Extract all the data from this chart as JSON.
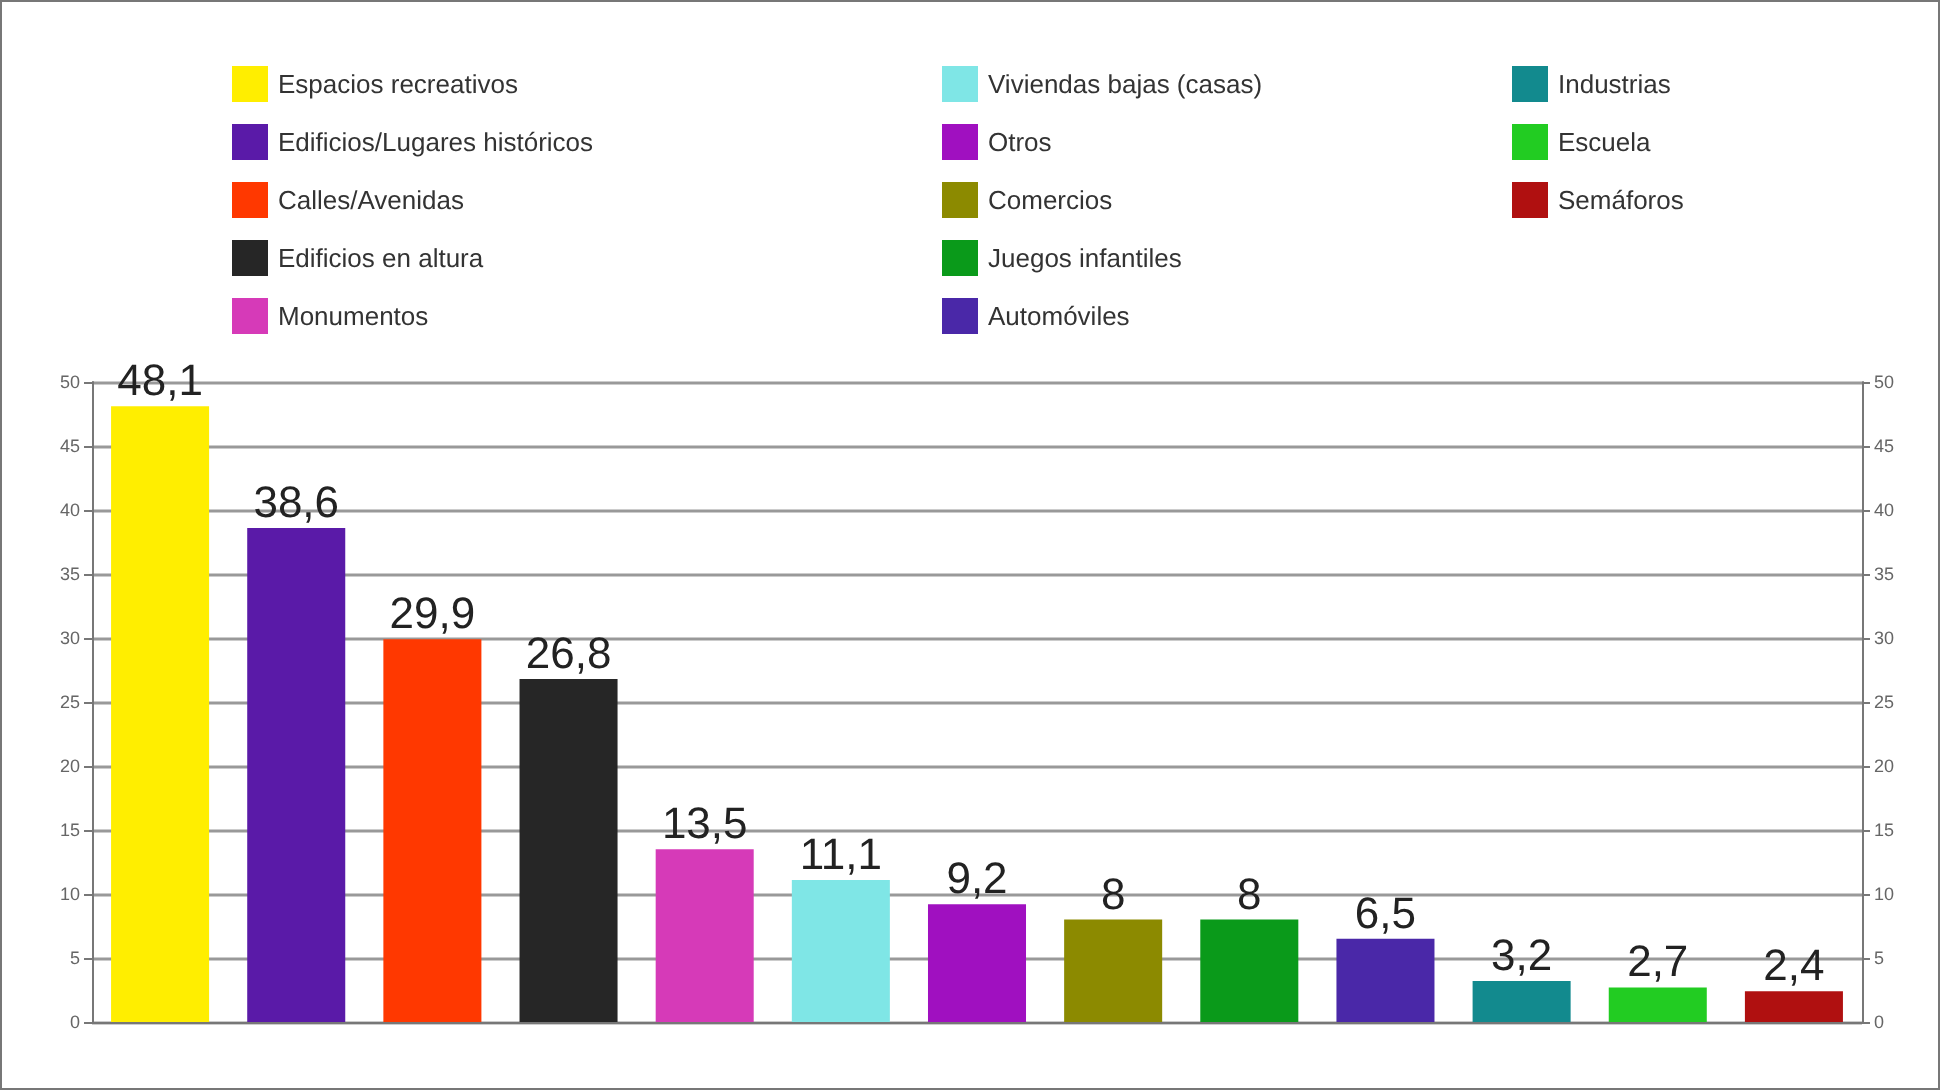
{
  "chart_data": {
    "type": "bar",
    "categories": [
      null,
      null,
      null,
      null,
      null,
      null,
      null,
      null,
      null,
      null,
      null,
      null,
      null
    ],
    "series": [
      {
        "name": "Espacios recreativos",
        "color": "#ffee00",
        "values": [
          48.1,
          null,
          null,
          null,
          null,
          null,
          null,
          null,
          null,
          null,
          null,
          null,
          null
        ],
        "value_labels": [
          "48,1",
          null,
          null,
          null,
          null,
          null,
          null,
          null,
          null,
          null,
          null,
          null,
          null
        ]
      },
      {
        "name": "Edificios/Lugares históricos",
        "color": "#5a1aa8",
        "values": [
          null,
          38.6,
          null,
          null,
          null,
          null,
          null,
          null,
          null,
          null,
          null,
          null,
          null
        ],
        "value_labels": [
          null,
          "38,6",
          null,
          null,
          null,
          null,
          null,
          null,
          null,
          null,
          null,
          null,
          null
        ]
      },
      {
        "name": "Calles/Avenidas",
        "color": "#ff3800",
        "values": [
          null,
          null,
          29.9,
          null,
          null,
          null,
          null,
          null,
          null,
          null,
          null,
          null,
          null
        ],
        "value_labels": [
          null,
          null,
          "29,9",
          null,
          null,
          null,
          null,
          null,
          null,
          null,
          null,
          null,
          null
        ]
      },
      {
        "name": "Edificios en altura",
        "color": "#262626",
        "values": [
          null,
          null,
          null,
          26.8,
          null,
          null,
          null,
          null,
          null,
          null,
          null,
          null,
          null
        ],
        "value_labels": [
          null,
          null,
          null,
          "26,8",
          null,
          null,
          null,
          null,
          null,
          null,
          null,
          null,
          null
        ]
      },
      {
        "name": "Monumentos",
        "color": "#d63ab8",
        "values": [
          null,
          null,
          null,
          null,
          13.5,
          null,
          null,
          null,
          null,
          null,
          null,
          null,
          null
        ],
        "value_labels": [
          null,
          null,
          null,
          null,
          "13,5",
          null,
          null,
          null,
          null,
          null,
          null,
          null,
          null
        ]
      },
      {
        "name": "Viviendas bajas (casas)",
        "color": "#7fe6e6",
        "values": [
          null,
          null,
          null,
          null,
          null,
          11.1,
          null,
          null,
          null,
          null,
          null,
          null,
          null
        ],
        "value_labels": [
          null,
          null,
          null,
          null,
          null,
          "11,1",
          null,
          null,
          null,
          null,
          null,
          null,
          null
        ]
      },
      {
        "name": "Otros",
        "color": "#a010c0",
        "values": [
          null,
          null,
          null,
          null,
          null,
          null,
          9.2,
          null,
          null,
          null,
          null,
          null,
          null
        ],
        "value_labels": [
          null,
          null,
          null,
          null,
          null,
          null,
          "9,2",
          null,
          null,
          null,
          null,
          null,
          null
        ]
      },
      {
        "name": "Comercios",
        "color": "#8c8a00",
        "values": [
          null,
          null,
          null,
          null,
          null,
          null,
          null,
          8,
          null,
          null,
          null,
          null,
          null
        ],
        "value_labels": [
          null,
          null,
          null,
          null,
          null,
          null,
          null,
          "8",
          null,
          null,
          null,
          null,
          null
        ]
      },
      {
        "name": "Juegos infantiles",
        "color": "#0a9a1a",
        "values": [
          null,
          null,
          null,
          null,
          null,
          null,
          null,
          null,
          8,
          null,
          null,
          null,
          null
        ],
        "value_labels": [
          null,
          null,
          null,
          null,
          null,
          null,
          null,
          null,
          "8",
          null,
          null,
          null,
          null
        ]
      },
      {
        "name": "Automóviles",
        "color": "#4a28a8",
        "values": [
          null,
          null,
          null,
          null,
          null,
          null,
          null,
          null,
          null,
          6.5,
          null,
          null,
          null
        ],
        "value_labels": [
          null,
          null,
          null,
          null,
          null,
          null,
          null,
          null,
          null,
          "6,5",
          null,
          null,
          null
        ]
      },
      {
        "name": "Industrias",
        "color": "#128a8e",
        "values": [
          null,
          null,
          null,
          null,
          null,
          null,
          null,
          null,
          null,
          null,
          3.2,
          null,
          null
        ],
        "value_labels": [
          null,
          null,
          null,
          null,
          null,
          null,
          null,
          null,
          null,
          null,
          "3,2",
          null,
          null
        ]
      },
      {
        "name": "Escuela",
        "color": "#22cc22",
        "values": [
          null,
          null,
          null,
          null,
          null,
          null,
          null,
          null,
          null,
          null,
          null,
          2.7,
          null
        ],
        "value_labels": [
          null,
          null,
          null,
          null,
          null,
          null,
          null,
          null,
          null,
          null,
          null,
          "2,7",
          null
        ]
      },
      {
        "name": "Semáforos",
        "color": "#b01010",
        "values": [
          null,
          null,
          null,
          null,
          null,
          null,
          null,
          null,
          null,
          null,
          null,
          null,
          2.4
        ],
        "value_labels": [
          null,
          null,
          null,
          null,
          null,
          null,
          null,
          null,
          null,
          null,
          null,
          null,
          "2,4"
        ]
      }
    ],
    "ylim": [
      0,
      50
    ],
    "yticks": [
      0,
      5,
      10,
      15,
      20,
      25,
      30,
      35,
      40,
      45,
      50
    ],
    "y2lim": [
      0,
      50
    ],
    "y2ticks": [
      0,
      5,
      10,
      15,
      20,
      25,
      30,
      35,
      40,
      45,
      50
    ],
    "grid": "y",
    "legend": "top"
  }
}
